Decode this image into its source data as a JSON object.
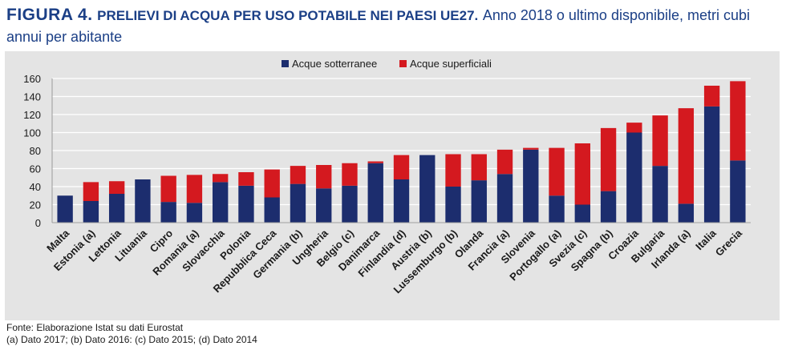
{
  "header": {
    "figure_label": "FIGURA 4.",
    "title_main": "PRELIEVI DI ACQUA PER USO POTABILE NEI PAESI UE27.",
    "title_sub": "Anno 2018 o ultimo disponibile, metri cubi annui per abitante"
  },
  "footer": {
    "source": "Fonte: Elaborazione Istat su dati Eurostat",
    "notes": "(a) Dato 2017; (b) Dato 2016: (c) Dato 2015; (d) Dato 2014"
  },
  "colors": {
    "groundwater": "#1c2d6e",
    "surface": "#d4191f",
    "plot_bg": "#e4e4e4",
    "grid": "#ffffff"
  },
  "chart_data": {
    "type": "bar",
    "stacked": true,
    "legend_position": "top",
    "ylim": [
      0,
      160
    ],
    "yticks": [
      0,
      20,
      40,
      60,
      80,
      100,
      120,
      140,
      160
    ],
    "grid": true,
    "categories": [
      "Malta",
      "Estonia (a)",
      "Lettonia",
      "Lituania",
      "Cipro",
      "Romania (a)",
      "Slovacchia",
      "Polonia",
      "Repubblica Ceca",
      "Germania (b)",
      "Ungheria",
      "Belgio (c)",
      "Danimarca",
      "Finlandia (d)",
      "Austria (b)",
      "Lussemburgo (b)",
      "Olanda",
      "Francia (a)",
      "Slovenia",
      "Portogallo (a)",
      "Svezia (c)",
      "Spagna (b)",
      "Croazia",
      "Bulgaria",
      "Irlanda (a)",
      "Italia",
      "Grecia"
    ],
    "series": [
      {
        "name": "Acque sotterranee",
        "values": [
          30,
          24,
          32,
          48,
          23,
          22,
          45,
          41,
          28,
          43,
          38,
          41,
          66,
          48,
          75,
          40,
          47,
          54,
          81,
          30,
          20,
          35,
          100,
          63,
          21,
          129,
          69
        ]
      },
      {
        "name": "Acque superficiali",
        "values": [
          0,
          21,
          14,
          0,
          29,
          31,
          9,
          15,
          31,
          20,
          26,
          25,
          2,
          27,
          0,
          36,
          29,
          27,
          2,
          53,
          68,
          70,
          11,
          56,
          106,
          23,
          88
        ]
      }
    ]
  }
}
